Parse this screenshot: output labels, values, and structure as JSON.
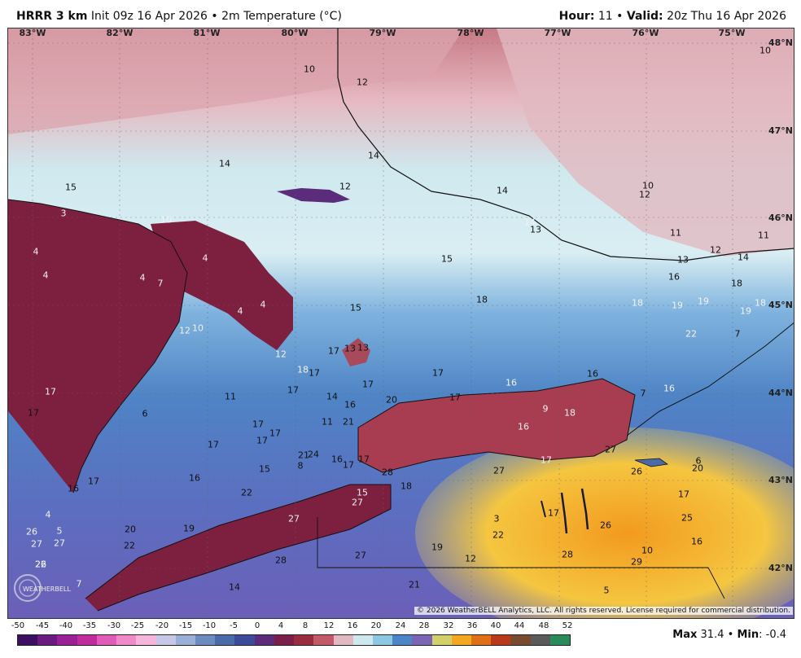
{
  "header": {
    "model": "HRRR 3 km",
    "init": "Init 09z 16 Apr 2026",
    "bullet": "•",
    "field": "2m Temperature (°C)",
    "hour_label": "Hour:",
    "hour_value": "11",
    "valid_label": "Valid:",
    "valid_value": "20z Thu 16 Apr 2026"
  },
  "longitude_labels": [
    "83°W",
    "82°W",
    "81°W",
    "80°W",
    "79°W",
    "78°W",
    "77°W",
    "76°W",
    "75°W"
  ],
  "latitude_labels": [
    "48°N",
    "47°N",
    "46°N",
    "45°N",
    "44°N",
    "43°N",
    "42°N"
  ],
  "temperature_values": [
    "10",
    "12",
    "10",
    "14",
    "14",
    "12",
    "15",
    "3",
    "10",
    "14",
    "10",
    "12",
    "14",
    "13",
    "11",
    "12",
    "11",
    "13",
    "14",
    "15",
    "4",
    "4",
    "4",
    "4",
    "4",
    "7",
    "10",
    "15",
    "18",
    "12",
    "13",
    "13",
    "16",
    "18",
    "19",
    "18",
    "19",
    "19",
    "4",
    "12",
    "18",
    "18",
    "17",
    "17",
    "22",
    "7",
    "17",
    "17",
    "17",
    "17",
    "14",
    "16",
    "16",
    "16",
    "11",
    "17",
    "17",
    "17",
    "17",
    "11",
    "21",
    "20",
    "17",
    "6",
    "7",
    "16",
    "17",
    "16",
    "18",
    "9",
    "15",
    "8",
    "21",
    "24",
    "16",
    "17",
    "17",
    "17",
    "27",
    "18",
    "16",
    "16",
    "17",
    "22",
    "28",
    "27",
    "26",
    "20",
    "6",
    "4",
    "5",
    "26",
    "27",
    "27",
    "15",
    "17",
    "3",
    "17",
    "26",
    "27",
    "20",
    "19",
    "22",
    "22",
    "25",
    "27",
    "26",
    "27",
    "19",
    "12",
    "28",
    "10",
    "16",
    "22",
    "28",
    "29",
    "7",
    "14",
    "21",
    "5"
  ],
  "copyright": "© 2026 WeatherBELL Analytics, LLC. All rights reserved. License required for commercial distribution.",
  "logo_text": "WEATHERBELL",
  "scale": {
    "ticks": [
      "-50",
      "-45",
      "-40",
      "-35",
      "-30",
      "-25",
      "-20",
      "-15",
      "-10",
      "-5",
      "0",
      "4",
      "8",
      "12",
      "16",
      "20",
      "24",
      "28",
      "32",
      "36",
      "40",
      "44",
      "48",
      "52"
    ],
    "colors": [
      "#3b1060",
      "#6a1a80",
      "#9a2098",
      "#c02c9c",
      "#e05cb8",
      "#f08ac8",
      "#f6b6dc",
      "#c8c8e6",
      "#9bb0d6",
      "#6c8cc0",
      "#4a6aa8",
      "#3c4a9a",
      "#5b2c7a",
      "#7a1f4a",
      "#9a2c40",
      "#c25a6a",
      "#e2b8c2",
      "#cfe8ee",
      "#8cc8e0",
      "#4c86c6",
      "#7a66b4",
      "#d2d06a",
      "#f2a820",
      "#e07018",
      "#b83a18",
      "#7a4a30",
      "#5a5a5a",
      "#2a8a5a"
    ]
  },
  "stats": {
    "max_label": "Max",
    "max_value": "31.4",
    "min_label": "Min",
    "min_value": "-0.4"
  }
}
